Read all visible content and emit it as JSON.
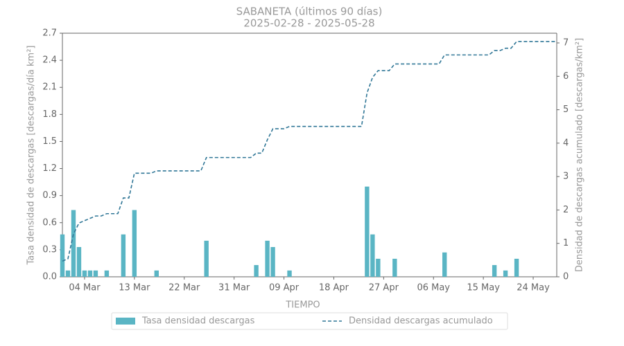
{
  "chart_data": {
    "type": "bar-line",
    "title": "SABANETA (últimos 90 días)",
    "subtitle": "2025-02-28  -  2025-05-28",
    "xlabel": "TIEMPO",
    "ylabel": "Tasa densidad de descargas [descargas/día km²]",
    "y2label": "Densidad de descargas acumulado [descargas/km²]",
    "x": [
      "2025-02-28",
      "2025-03-01",
      "2025-03-02",
      "2025-03-03",
      "2025-03-04",
      "2025-03-05",
      "2025-03-06",
      "2025-03-07",
      "2025-03-08",
      "2025-03-09",
      "2025-03-10",
      "2025-03-11",
      "2025-03-12",
      "2025-03-13",
      "2025-03-14",
      "2025-03-15",
      "2025-03-16",
      "2025-03-17",
      "2025-03-18",
      "2025-03-19",
      "2025-03-20",
      "2025-03-21",
      "2025-03-22",
      "2025-03-23",
      "2025-03-24",
      "2025-03-25",
      "2025-03-26",
      "2025-03-27",
      "2025-03-28",
      "2025-03-29",
      "2025-03-30",
      "2025-03-31",
      "2025-04-01",
      "2025-04-02",
      "2025-04-03",
      "2025-04-04",
      "2025-04-05",
      "2025-04-06",
      "2025-04-07",
      "2025-04-08",
      "2025-04-09",
      "2025-04-10",
      "2025-04-11",
      "2025-04-12",
      "2025-04-13",
      "2025-04-14",
      "2025-04-15",
      "2025-04-16",
      "2025-04-17",
      "2025-04-18",
      "2025-04-19",
      "2025-04-20",
      "2025-04-21",
      "2025-04-22",
      "2025-04-23",
      "2025-04-24",
      "2025-04-25",
      "2025-04-26",
      "2025-04-27",
      "2025-04-28",
      "2025-04-29",
      "2025-04-30",
      "2025-05-01",
      "2025-05-02",
      "2025-05-03",
      "2025-05-04",
      "2025-05-05",
      "2025-05-06",
      "2025-05-07",
      "2025-05-08",
      "2025-05-09",
      "2025-05-10",
      "2025-05-11",
      "2025-05-12",
      "2025-05-13",
      "2025-05-14",
      "2025-05-15",
      "2025-05-16",
      "2025-05-17",
      "2025-05-18",
      "2025-05-19",
      "2025-05-20",
      "2025-05-21",
      "2025-05-22",
      "2025-05-23",
      "2025-05-24",
      "2025-05-25",
      "2025-05-26",
      "2025-05-27",
      "2025-05-28"
    ],
    "series": [
      {
        "name": "Tasa densidad descargas",
        "color": "#5ab5c4",
        "axis": "y",
        "values": [
          0.47,
          0.07,
          0.74,
          0.33,
          0.07,
          0.07,
          0.07,
          0,
          0.07,
          0,
          0,
          0.47,
          0,
          0.74,
          0,
          0,
          0,
          0.07,
          0,
          0,
          0,
          0,
          0,
          0,
          0,
          0,
          0.4,
          0,
          0,
          0,
          0,
          0,
          0,
          0,
          0,
          0.13,
          0,
          0.4,
          0.33,
          0,
          0,
          0.07,
          0,
          0,
          0,
          0,
          0,
          0,
          0,
          0,
          0,
          0,
          0,
          0,
          0,
          1,
          0.47,
          0.2,
          0,
          0,
          0.2,
          0,
          0,
          0,
          0,
          0,
          0,
          0,
          0,
          0.27,
          0,
          0,
          0,
          0,
          0,
          0,
          0,
          0,
          0.13,
          0,
          0.07,
          0,
          0.2,
          0,
          0,
          0,
          0,
          0,
          0,
          0
        ]
      },
      {
        "name": "Densidad descargas acumulado",
        "color": "#2f7696",
        "axis": "y2",
        "values": [
          0.47,
          0.54,
          1.28,
          1.61,
          1.68,
          1.75,
          1.82,
          1.82,
          1.89,
          1.89,
          1.89,
          2.36,
          2.36,
          3.1,
          3.1,
          3.1,
          3.1,
          3.17,
          3.17,
          3.17,
          3.17,
          3.17,
          3.17,
          3.17,
          3.17,
          3.17,
          3.57,
          3.57,
          3.57,
          3.57,
          3.57,
          3.57,
          3.57,
          3.57,
          3.57,
          3.7,
          3.7,
          4.1,
          4.43,
          4.43,
          4.43,
          4.5,
          4.5,
          4.5,
          4.5,
          4.5,
          4.5,
          4.5,
          4.5,
          4.5,
          4.5,
          4.5,
          4.5,
          4.5,
          4.5,
          5.5,
          5.97,
          6.17,
          6.17,
          6.17,
          6.37,
          6.37,
          6.37,
          6.37,
          6.37,
          6.37,
          6.37,
          6.37,
          6.37,
          6.64,
          6.64,
          6.64,
          6.64,
          6.64,
          6.64,
          6.64,
          6.64,
          6.64,
          6.77,
          6.77,
          6.84,
          6.84,
          7.04,
          7.04,
          7.04,
          7.04,
          7.04,
          7.04,
          7.04,
          7.04
        ]
      }
    ],
    "xlim": [
      "2025-02-28",
      "2025-05-28"
    ],
    "xticks": [
      {
        "value": "2025-03-04",
        "label": "04 Mar"
      },
      {
        "value": "2025-03-13",
        "label": "13 Mar"
      },
      {
        "value": "2025-03-22",
        "label": "22 Mar"
      },
      {
        "value": "2025-03-31",
        "label": "31 Mar"
      },
      {
        "value": "2025-04-09",
        "label": "09 Apr"
      },
      {
        "value": "2025-04-18",
        "label": "18 Apr"
      },
      {
        "value": "2025-04-27",
        "label": "27 Apr"
      },
      {
        "value": "2025-05-06",
        "label": "06 May"
      },
      {
        "value": "2025-05-15",
        "label": "15 May"
      },
      {
        "value": "2025-05-24",
        "label": "24 May"
      }
    ],
    "ylim": [
      0,
      2.7
    ],
    "yticks": [
      {
        "value": 0,
        "label": "0.0"
      },
      {
        "value": 0.3,
        "label": "0.3"
      },
      {
        "value": 0.6,
        "label": "0.6"
      },
      {
        "value": 0.9,
        "label": "0.9"
      },
      {
        "value": 1.2,
        "label": "1.2"
      },
      {
        "value": 1.5,
        "label": "1.5"
      },
      {
        "value": 1.8,
        "label": "1.8"
      },
      {
        "value": 2.1,
        "label": "2.1"
      },
      {
        "value": 2.4,
        "label": "2.4"
      },
      {
        "value": 2.7,
        "label": "2.7"
      }
    ],
    "y2lim": [
      0,
      7.29
    ],
    "y2ticks": [
      0,
      1,
      2,
      3,
      4,
      5,
      6,
      7
    ],
    "legend": "bottom"
  }
}
